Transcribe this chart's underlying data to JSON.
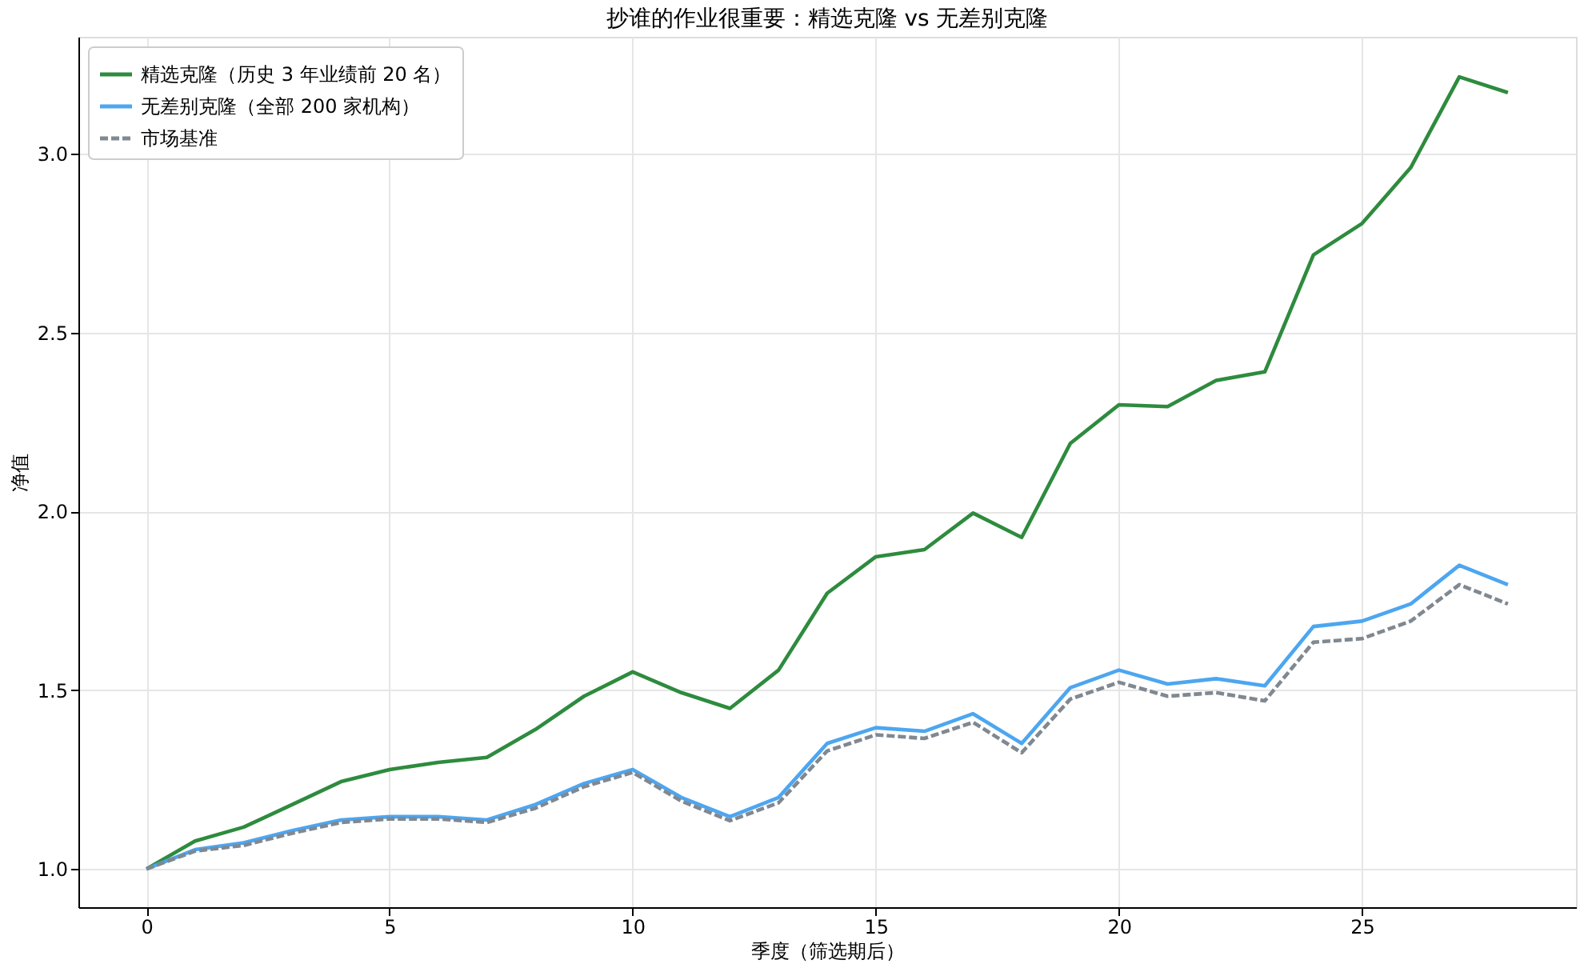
{
  "chart_data": {
    "type": "line",
    "title": "抄谁的作业很重要：精选克隆 vs 无差别克隆",
    "xlabel": "季度（筛选期后）",
    "ylabel": "净值",
    "x": [
      0,
      1,
      2,
      3,
      4,
      5,
      6,
      7,
      8,
      9,
      10,
      11,
      12,
      13,
      14,
      15,
      16,
      17,
      18,
      19,
      20,
      21,
      22,
      23,
      24,
      25,
      26,
      27,
      28
    ],
    "series": [
      {
        "name": "精选克隆（历史 3 年业绩前 20 名）",
        "color": "#2e8b3e",
        "line_style": "solid",
        "values": [
          1.0,
          1.078,
          1.117,
          1.18,
          1.244,
          1.278,
          1.298,
          1.312,
          1.39,
          1.483,
          1.551,
          1.493,
          1.449,
          1.556,
          1.771,
          1.873,
          1.893,
          1.995,
          1.927,
          2.19,
          2.298,
          2.293,
          2.366,
          2.39,
          2.717,
          2.805,
          2.961,
          3.215,
          3.171
        ]
      },
      {
        "name": "无差别克隆（全部 200 家机构）",
        "color": "#4da6f0",
        "line_style": "solid",
        "values": [
          1.0,
          1.054,
          1.073,
          1.107,
          1.137,
          1.146,
          1.146,
          1.137,
          1.18,
          1.239,
          1.278,
          1.2,
          1.146,
          1.2,
          1.351,
          1.395,
          1.385,
          1.434,
          1.351,
          1.507,
          1.556,
          1.517,
          1.532,
          1.512,
          1.678,
          1.693,
          1.741,
          1.849,
          1.795
        ]
      },
      {
        "name": "市场基准",
        "color": "#808891",
        "line_style": "dashed",
        "values": [
          1.0,
          1.05,
          1.066,
          1.1,
          1.13,
          1.14,
          1.14,
          1.13,
          1.17,
          1.23,
          1.27,
          1.19,
          1.135,
          1.185,
          1.33,
          1.375,
          1.365,
          1.41,
          1.325,
          1.475,
          1.522,
          1.483,
          1.493,
          1.47,
          1.634,
          1.644,
          1.693,
          1.795,
          1.741
        ]
      }
    ],
    "xlim": [
      -1.4,
      29.4
    ],
    "xticks": [
      0,
      5,
      10,
      15,
      20,
      25
    ],
    "ylim": [
      0.893,
      3.327
    ],
    "yticks": [
      {
        "value": 1,
        "label": "1.0"
      },
      {
        "value": 1.5,
        "label": "1.5"
      },
      {
        "value": 2,
        "label": "2.0"
      },
      {
        "value": 2.5,
        "label": "2.5"
      },
      {
        "value": 3,
        "label": "3.0"
      }
    ],
    "grid": true,
    "legend": "top left",
    "marker": "none"
  }
}
